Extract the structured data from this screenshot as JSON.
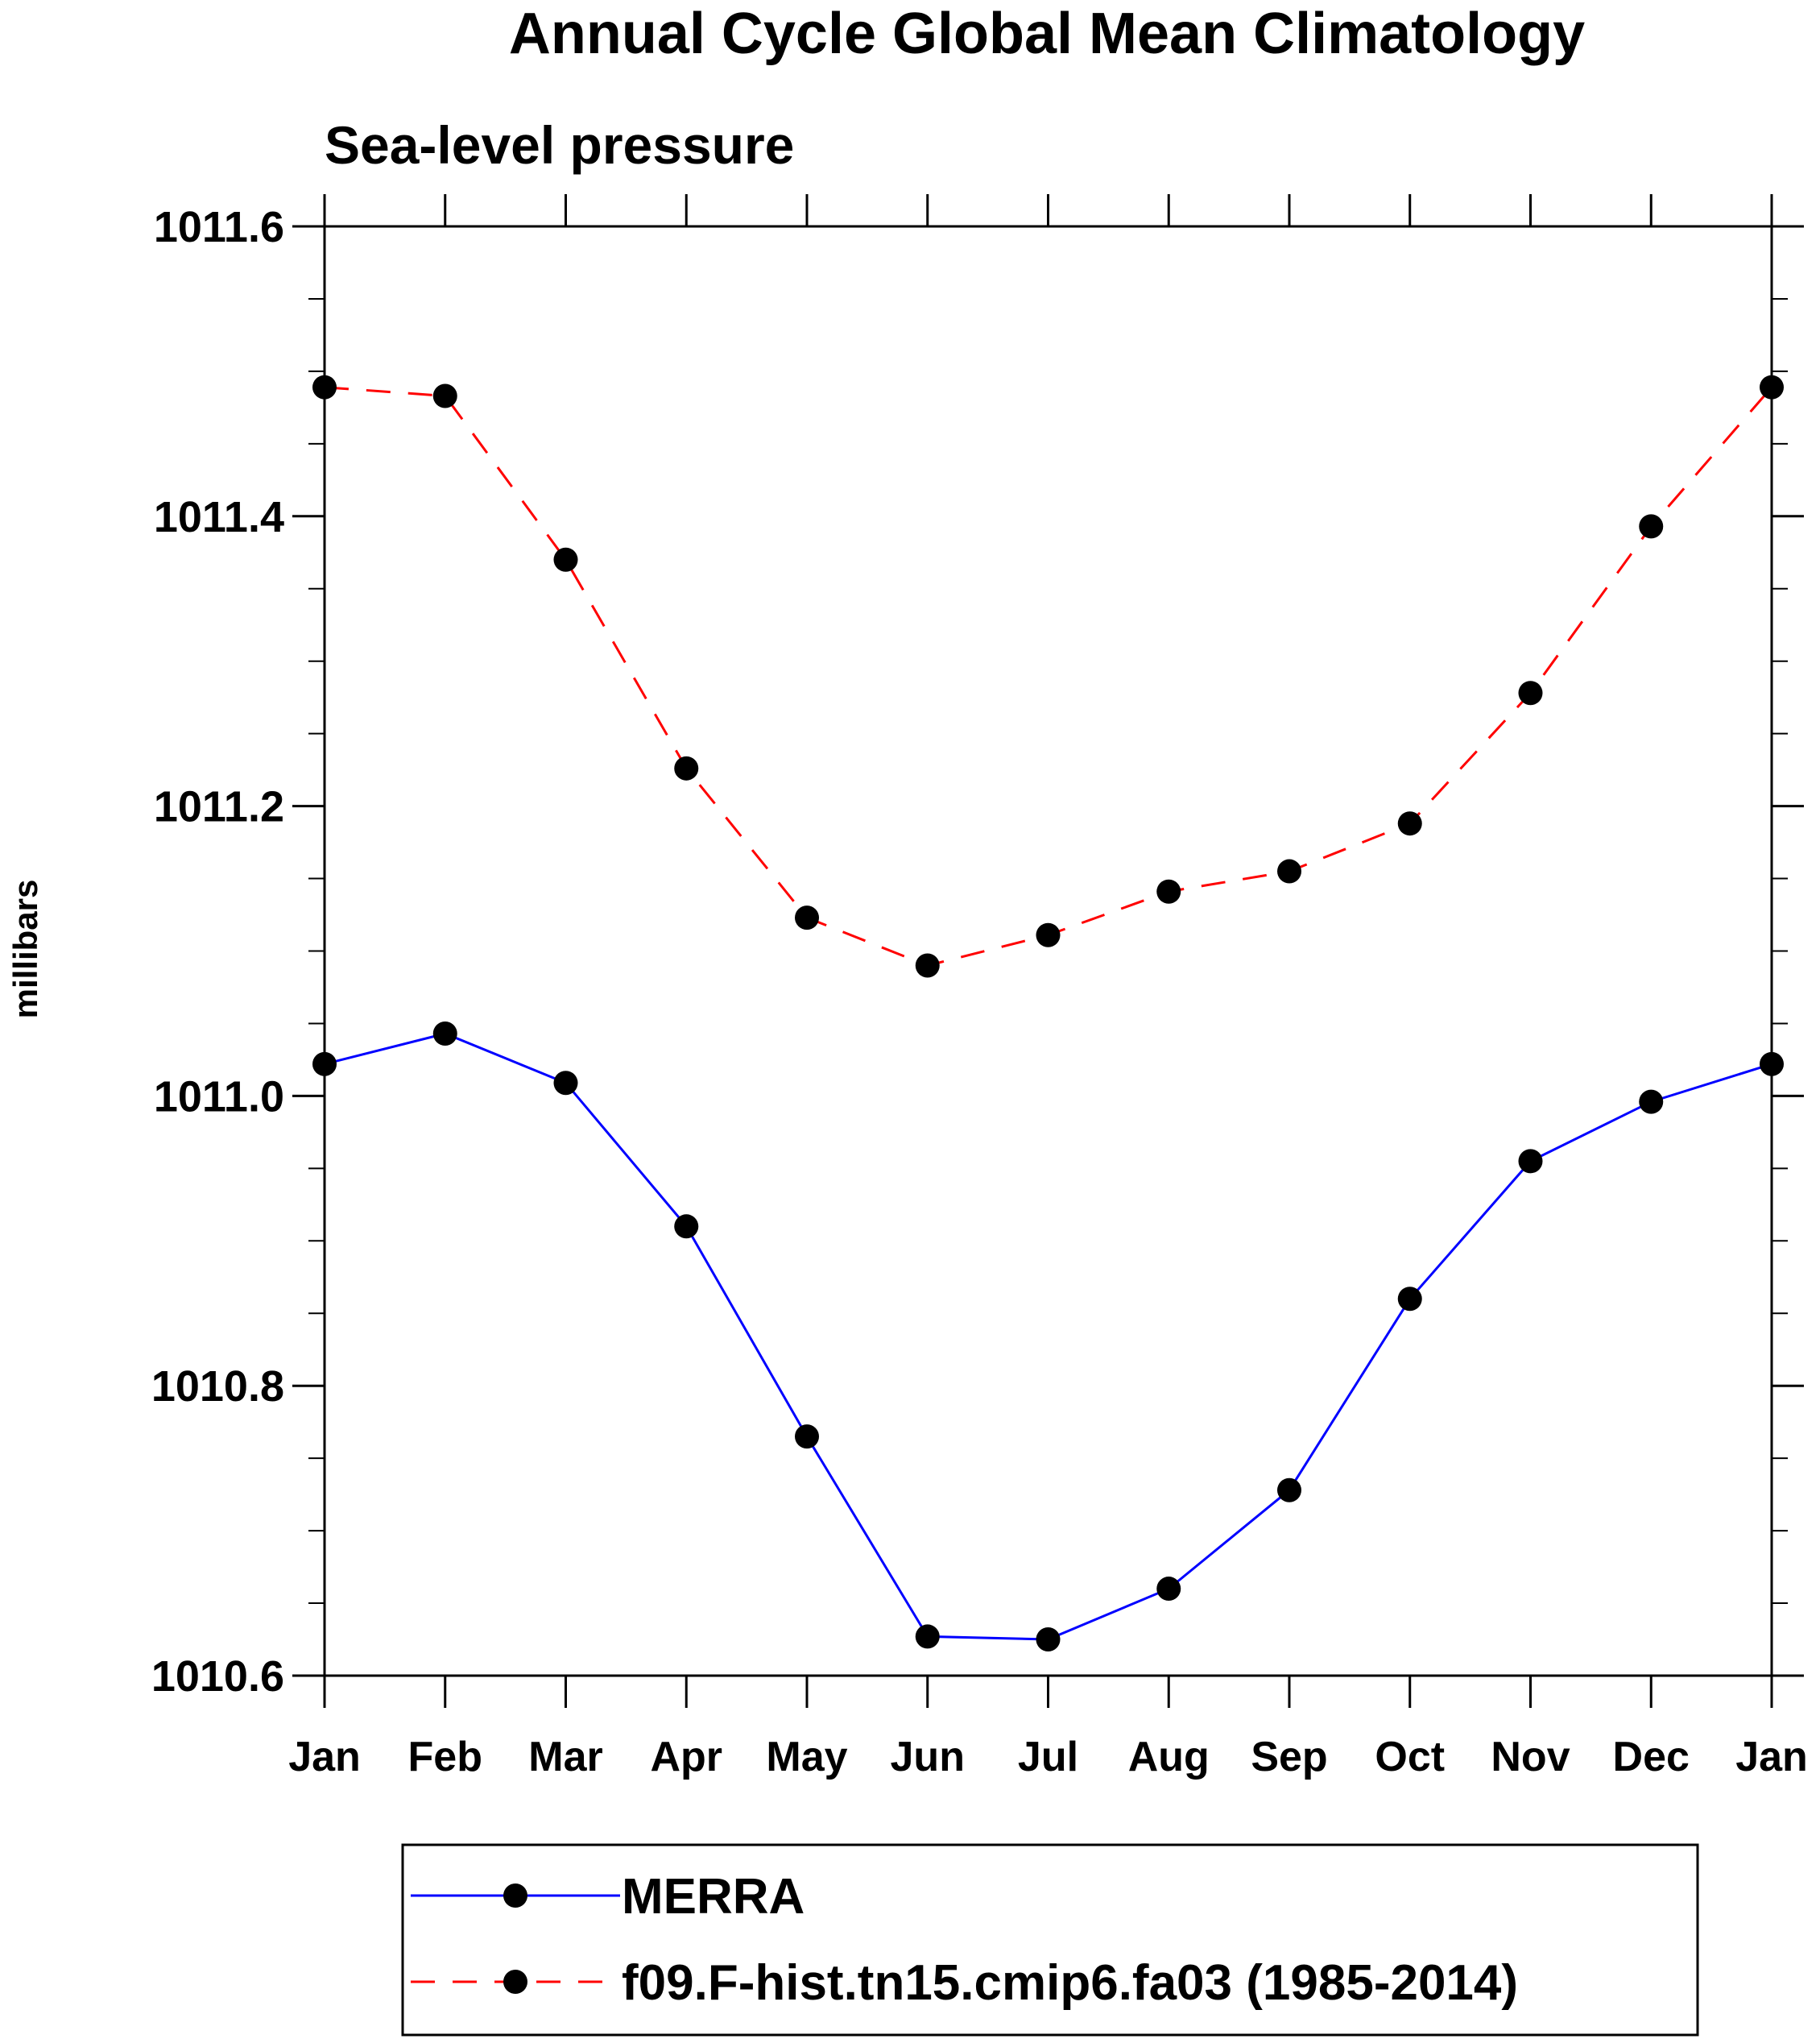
{
  "chart_data": {
    "type": "line",
    "title": "Annual Cycle Global Mean Climatology",
    "subtitle": "Sea-level pressure",
    "xlabel": "",
    "ylabel": "millibars",
    "ylim": [
      1010.6,
      1011.6
    ],
    "yticks": [
      "1010.6",
      "1010.8",
      "1011.0",
      "1011.2",
      "1011.4",
      "1011.6"
    ],
    "categories": [
      "Jan",
      "Feb",
      "Mar",
      "Apr",
      "May",
      "Jun",
      "Jul",
      "Aug",
      "Sep",
      "Oct",
      "Nov",
      "Dec",
      "Jan"
    ],
    "series": [
      {
        "name": "MERRA",
        "color": "#0000ff",
        "dash": "solid",
        "values": [
          1011.022,
          1011.043,
          1011.009,
          1010.91,
          1010.765,
          1010.627,
          1010.625,
          1010.66,
          1010.728,
          1010.86,
          1010.955,
          1010.996,
          1011.022
        ]
      },
      {
        "name": "f09.F-hist.tn15.cmip6.fa03 (1985-2014)",
        "color": "#ff0000",
        "dash": "dashed",
        "values": [
          1011.489,
          1011.483,
          1011.37,
          1011.226,
          1011.123,
          1011.09,
          1011.111,
          1011.141,
          1011.155,
          1011.188,
          1011.278,
          1011.393,
          1011.489
        ]
      }
    ],
    "legend_position": "bottom"
  }
}
